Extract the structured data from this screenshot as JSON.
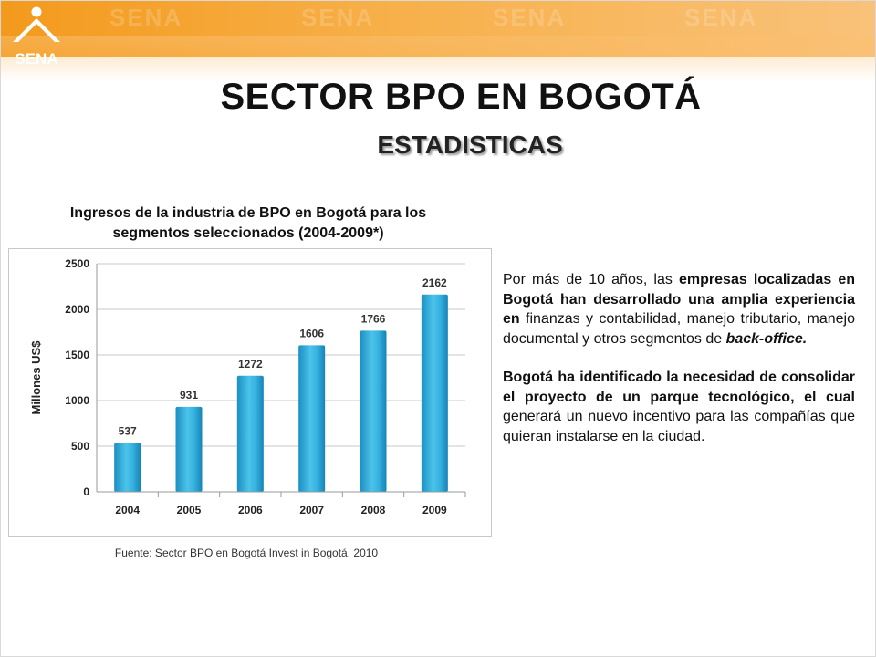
{
  "header": {
    "logo_text": "SENA",
    "colors": {
      "band_start": "#f39a1c",
      "band_end": "#f9c27a",
      "logo_green": "#ffffff"
    }
  },
  "slide": {
    "title": "SECTOR BPO EN BOGOTÁ",
    "subtitle": "ESTADISTICAS",
    "chart_caption": "Ingresos de la industria de BPO en Bogotá para los segmentos seleccionados (2004-2009*)",
    "source": "Fuente: Sector BPO en Bogotá Invest in Bogotá. 2010"
  },
  "paragraph1": {
    "p1": "Por más de 10 años, las ",
    "p2": "empresas localizadas en Bogotá han desarrollado una amplia experiencia en",
    "p3": " finanzas y contabilidad, manejo tributario, manejo documental y otros segmentos de ",
    "p4": "back-office."
  },
  "paragraph2": {
    "p1": "Bogotá ha identificado la necesidad de consolidar el proyecto de un parque tecnológico, el cual",
    "p2": " generará un nuevo incentivo para las compañías que quieran instalarse en la ciudad."
  },
  "chart_data": {
    "type": "bar",
    "categories": [
      "2004",
      "2005",
      "2006",
      "2007",
      "2008",
      "2009"
    ],
    "values": [
      537,
      931,
      1272,
      1606,
      1766,
      2162
    ],
    "title": "Ingresos de la industria de BPO en Bogotá para los segmentos seleccionados (2004-2009*)",
    "xlabel": "",
    "ylabel": "Millones US$",
    "ylim": [
      0,
      2500
    ],
    "yticks": [
      0,
      500,
      1000,
      1500,
      2000,
      2500
    ],
    "grid": true,
    "legend": "none",
    "bar_color": "#2ba6d6"
  }
}
